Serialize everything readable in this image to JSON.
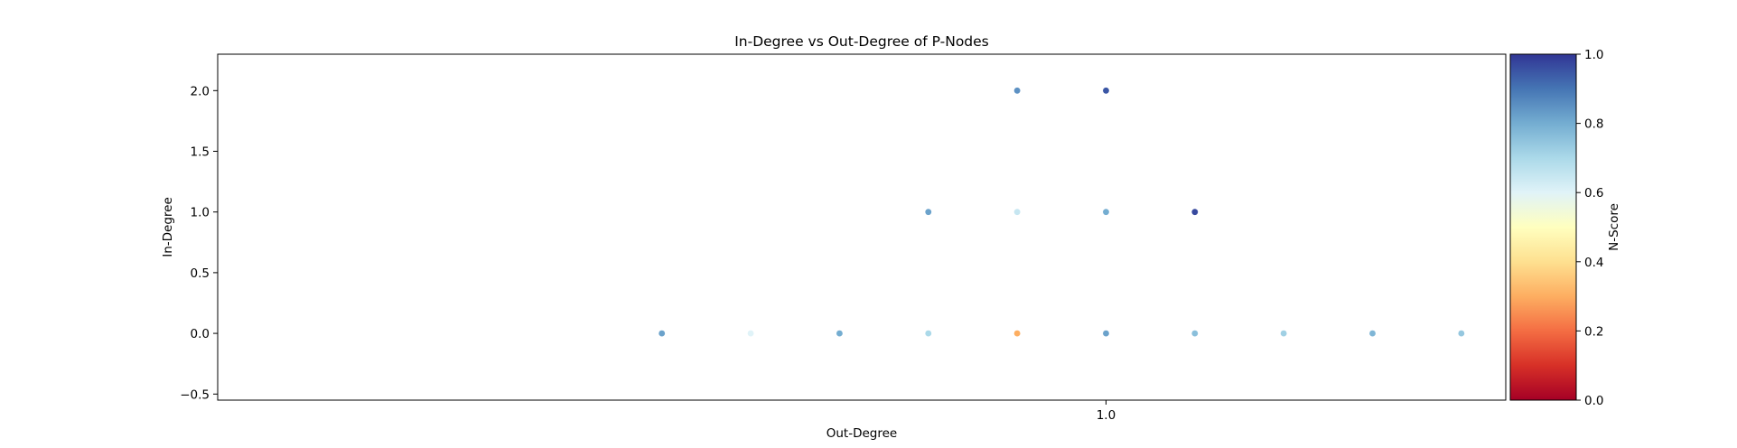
{
  "chart_data": {
    "type": "scatter",
    "title": "In-Degree vs Out-Degree of P-Nodes",
    "xlabel": "Out-Degree",
    "ylabel": "In-Degree",
    "xlim": [
      0.0,
      1.45
    ],
    "ylim": [
      -0.55,
      2.3
    ],
    "x_ticks": [
      1.0
    ],
    "x_tick_labels": [
      "1.0"
    ],
    "y_ticks": [
      -0.5,
      0.0,
      0.5,
      1.0,
      1.5,
      2.0
    ],
    "y_tick_labels": [
      "−0.5",
      "0.0",
      "0.5",
      "1.0",
      "1.5",
      "2.0"
    ],
    "series": [
      {
        "name": "P-Nodes",
        "points": [
          {
            "x": 0.9,
            "y": 2.0,
            "score": 0.85
          },
          {
            "x": 1.0,
            "y": 2.0,
            "score": 0.95
          },
          {
            "x": 0.8,
            "y": 1.0,
            "score": 0.82
          },
          {
            "x": 0.9,
            "y": 1.0,
            "score": 0.65
          },
          {
            "x": 1.0,
            "y": 1.0,
            "score": 0.8
          },
          {
            "x": 1.1,
            "y": 1.0,
            "score": 0.97
          },
          {
            "x": 0.5,
            "y": 0.0,
            "score": 0.82
          },
          {
            "x": 0.6,
            "y": 0.0,
            "score": 0.6
          },
          {
            "x": 0.7,
            "y": 0.0,
            "score": 0.8
          },
          {
            "x": 0.8,
            "y": 0.0,
            "score": 0.7
          },
          {
            "x": 0.9,
            "y": 0.0,
            "score": 0.3
          },
          {
            "x": 1.0,
            "y": 0.0,
            "score": 0.82
          },
          {
            "x": 1.1,
            "y": 0.0,
            "score": 0.76
          },
          {
            "x": 1.2,
            "y": 0.0,
            "score": 0.72
          },
          {
            "x": 1.3,
            "y": 0.0,
            "score": 0.78
          },
          {
            "x": 1.4,
            "y": 0.0,
            "score": 0.74
          }
        ]
      }
    ],
    "colorbar": {
      "label": "N-Score",
      "cmap": "RdYlBu",
      "range": [
        0.0,
        1.0
      ],
      "ticks": [
        0.0,
        0.2,
        0.4,
        0.6,
        0.8,
        1.0
      ],
      "tick_labels": [
        "0.0",
        "0.2",
        "0.4",
        "0.6",
        "0.8",
        "1.0"
      ],
      "stops": [
        "#a50026",
        "#d73027",
        "#f46d43",
        "#fdae61",
        "#fee090",
        "#ffffbf",
        "#e0f3f8",
        "#abd9e9",
        "#74add1",
        "#4575b4",
        "#313695"
      ]
    },
    "grid": false
  }
}
